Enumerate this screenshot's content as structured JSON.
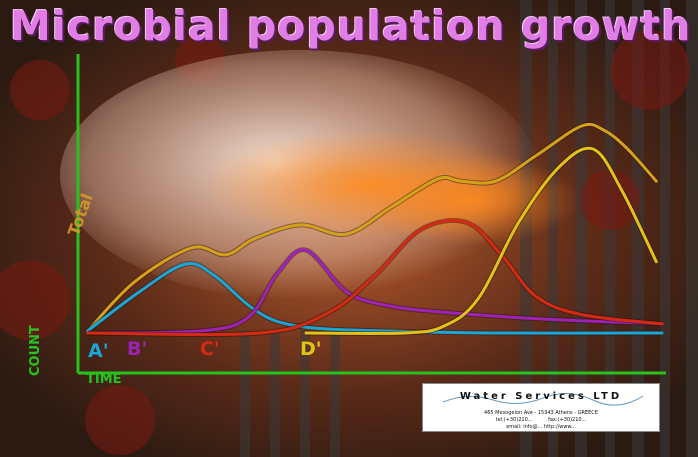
{
  "title": "Microbial population growth",
  "axis": {
    "ylabel": "COUNT",
    "xlabel": "TIME",
    "total_label": "Total"
  },
  "colors": {
    "axis": "#27c21f",
    "total": "#d4a11a",
    "A": "#1aa6d8",
    "B": "#9d22b8",
    "C": "#d42a14",
    "D": "#e2c217"
  },
  "company": {
    "name": "Water Services LTD",
    "address": "465 Mesogeion Ave - 15343 Athens - GREECE",
    "tel_line": "tel:(+30)210... fax:(+30)210...",
    "web_line": "email: info@... http://www..."
  },
  "chart_data": {
    "type": "line",
    "title": "Microbial population growth",
    "xlabel": "TIME",
    "ylabel": "COUNT",
    "xlim": [
      0,
      100
    ],
    "ylim": [
      0,
      100
    ],
    "grid": false,
    "series": [
      {
        "name": "Total",
        "x": [
          0,
          8,
          18,
          24,
          29,
          37,
          45,
          53,
          61,
          65,
          71,
          78,
          86,
          90,
          94,
          99
        ],
        "y": [
          1,
          22,
          37,
          34,
          41,
          47,
          43,
          55,
          67,
          66,
          66,
          77,
          90,
          88,
          80,
          66
        ]
      },
      {
        "name": "A'",
        "x": [
          0,
          9,
          17,
          22,
          28,
          33,
          40,
          50,
          70,
          100
        ],
        "y": [
          1,
          18,
          30,
          25,
          12,
          5,
          2,
          1,
          0,
          0
        ]
      },
      {
        "name": "B'",
        "x": [
          0,
          20,
          28,
          33,
          38,
          45,
          52,
          62,
          80,
          100
        ],
        "y": [
          0,
          1,
          7,
          26,
          36,
          18,
          12,
          9,
          6,
          4
        ]
      },
      {
        "name": "C'",
        "x": [
          0,
          30,
          42,
          50,
          58,
          66,
          72,
          78,
          86,
          100
        ],
        "y": [
          0,
          0,
          9,
          25,
          45,
          48,
          34,
          16,
          8,
          4
        ]
      },
      {
        "name": "D'",
        "x": [
          38,
          55,
          62,
          68,
          75,
          82,
          88,
          93,
          99
        ],
        "y": [
          0,
          0,
          3,
          15,
          48,
          72,
          80,
          62,
          31
        ]
      }
    ]
  }
}
